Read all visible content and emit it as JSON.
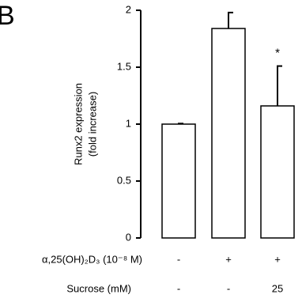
{
  "panel_label": "B",
  "chart_data": {
    "type": "bar",
    "y_label": [
      "Runx2 expression",
      "(fold increase)"
    ],
    "categories": [
      null,
      null,
      null
    ],
    "values": [
      1.0,
      1.84,
      1.16
    ],
    "errors": [
      0.005,
      0.14,
      0.35
    ],
    "significance_marks": [
      null,
      null,
      "*"
    ],
    "color": "#ffffff",
    "ylim": [
      0,
      2
    ],
    "yticks": [
      0,
      0.5,
      1,
      1.5,
      2
    ],
    "grid": false,
    "conditions": [
      {
        "label": "α,25(OH)₂D₃ (10⁻⁸ M)",
        "values": [
          "-",
          "+",
          "+"
        ]
      },
      {
        "label": "Sucrose (mM)",
        "values": [
          "-",
          "-",
          "25"
        ]
      }
    ]
  }
}
